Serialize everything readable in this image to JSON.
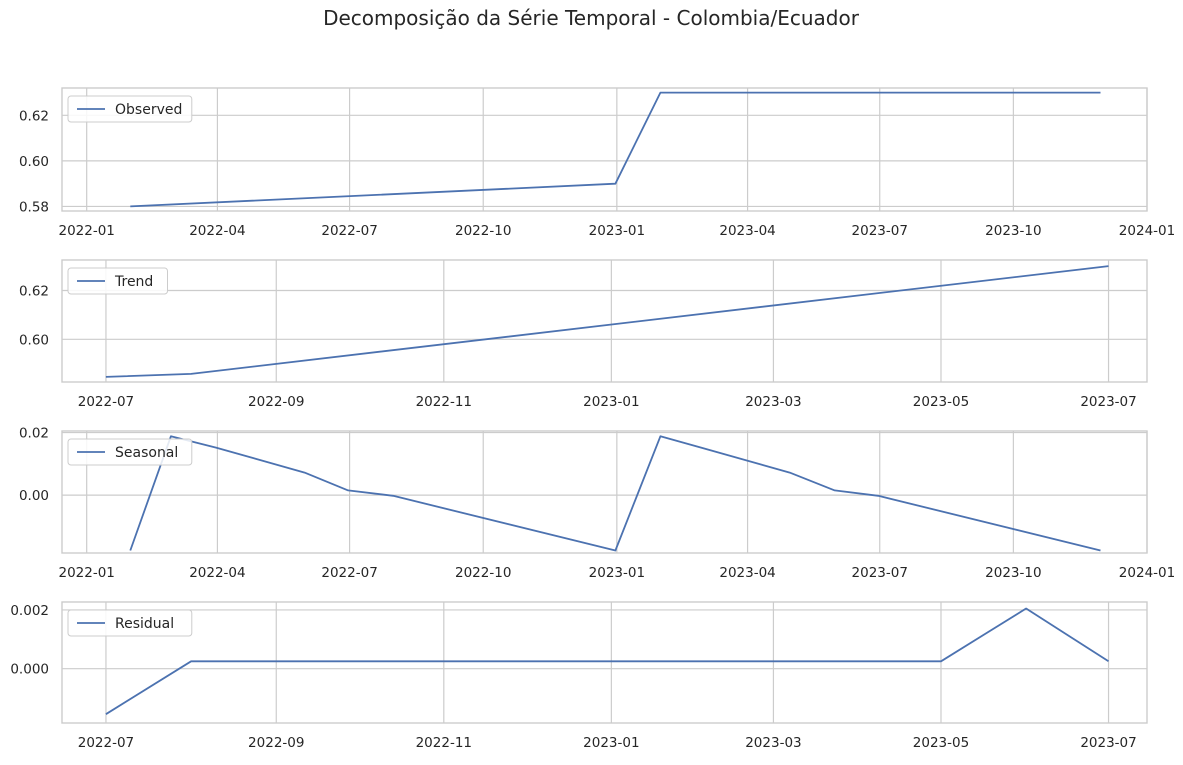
{
  "figure": {
    "title": "Decomposição da Série Temporal - Colombia/Ecuador"
  },
  "colors": {
    "line": "#4c72b0",
    "grid": "#cccccc",
    "spine": "#cccccc",
    "text": "#262626",
    "background": "#ffffff"
  },
  "chart_data": [
    {
      "type": "line",
      "title": "",
      "xlabel": "",
      "ylabel": "",
      "legend": {
        "position": "upper-left",
        "entries": [
          "Observed"
        ]
      },
      "grid": true,
      "xlim": [
        "2021-12-15",
        "2024-01-01"
      ],
      "ylim": [
        0.578,
        0.632
      ],
      "xticks": [
        "2022-01-01",
        "2022-04-01",
        "2022-07-01",
        "2022-10-01",
        "2023-01-01",
        "2023-04-01",
        "2023-07-01",
        "2023-10-01",
        "2024-01-01"
      ],
      "xtick_labels": [
        "2022-01",
        "2022-04",
        "2022-07",
        "2022-10",
        "2023-01",
        "2023-04",
        "2023-07",
        "2023-10",
        "2024-01"
      ],
      "yticks": [
        0.58,
        0.6,
        0.62
      ],
      "ytick_labels": [
        "0.58",
        "0.60",
        "0.62"
      ],
      "series": [
        {
          "name": "Observed",
          "x": [
            "2022-01-31",
            "2022-12-31",
            "2023-01-31",
            "2023-02-28",
            "2023-03-31",
            "2023-04-30",
            "2023-05-31",
            "2023-06-30",
            "2023-07-31",
            "2023-08-31",
            "2023-09-30",
            "2023-10-31",
            "2023-11-30"
          ],
          "y": [
            0.58,
            0.59,
            0.63,
            0.63,
            0.63,
            0.63,
            0.63,
            0.63,
            0.63,
            0.63,
            0.63,
            0.63,
            0.63
          ]
        }
      ]
    },
    {
      "type": "line",
      "title": "",
      "xlabel": "",
      "ylabel": "",
      "legend": {
        "position": "upper-left",
        "entries": [
          "Trend"
        ]
      },
      "grid": true,
      "xlim": [
        "2022-06-15",
        "2023-07-15"
      ],
      "ylim": [
        0.5825,
        0.6325
      ],
      "xticks": [
        "2022-07-01",
        "2022-09-01",
        "2022-11-01",
        "2023-01-01",
        "2023-03-01",
        "2023-05-01",
        "2023-07-01"
      ],
      "xtick_labels": [
        "2022-07",
        "2022-09",
        "2022-11",
        "2023-01",
        "2023-03",
        "2023-05",
        "2023-07"
      ],
      "yticks": [
        0.6,
        0.62
      ],
      "ytick_labels": [
        "0.60",
        "0.62"
      ],
      "series": [
        {
          "name": "Trend",
          "x": [
            "2022-07-01",
            "2022-08-01",
            "2023-07-01"
          ],
          "y": [
            0.5846,
            0.5858,
            0.63
          ]
        }
      ]
    },
    {
      "type": "line",
      "title": "",
      "xlabel": "",
      "ylabel": "",
      "legend": {
        "position": "upper-left",
        "entries": [
          "Seasonal"
        ]
      },
      "grid": true,
      "xlim": [
        "2021-12-15",
        "2024-01-01"
      ],
      "ylim": [
        -0.0185,
        0.0205
      ],
      "xticks": [
        "2022-01-01",
        "2022-04-01",
        "2022-07-01",
        "2022-10-01",
        "2023-01-01",
        "2023-04-01",
        "2023-07-01",
        "2023-10-01",
        "2024-01-01"
      ],
      "xtick_labels": [
        "2022-01",
        "2022-04",
        "2022-07",
        "2022-10",
        "2023-01",
        "2023-04",
        "2023-07",
        "2023-10",
        "2024-01"
      ],
      "yticks": [
        0.0,
        0.02
      ],
      "ytick_labels": [
        "0.00",
        "0.02"
      ],
      "series": [
        {
          "name": "Seasonal",
          "x": [
            "2022-01-31",
            "2022-02-28",
            "2022-03-31",
            "2022-05-31",
            "2022-06-30",
            "2022-07-31",
            "2022-12-31",
            "2023-01-31",
            "2023-02-28",
            "2023-04-30",
            "2023-05-31",
            "2023-06-30",
            "2023-11-30"
          ],
          "y": [
            -0.0177,
            0.0188,
            0.0152,
            0.0072,
            0.0015,
            -0.0002,
            -0.0177,
            0.0188,
            0.0152,
            0.0072,
            0.0015,
            -0.0002,
            -0.0177
          ]
        }
      ]
    },
    {
      "type": "line",
      "title": "",
      "xlabel": "",
      "ylabel": "",
      "legend": {
        "position": "upper-left",
        "entries": [
          "Residual"
        ]
      },
      "grid": true,
      "xlim": [
        "2022-06-15",
        "2023-07-15"
      ],
      "ylim": [
        -0.00185,
        0.00227
      ],
      "xticks": [
        "2022-07-01",
        "2022-09-01",
        "2022-11-01",
        "2023-01-01",
        "2023-03-01",
        "2023-05-01",
        "2023-07-01"
      ],
      "xtick_labels": [
        "2022-07",
        "2022-09",
        "2022-11",
        "2023-01",
        "2023-03",
        "2023-05",
        "2023-07"
      ],
      "yticks": [
        0.0,
        0.002
      ],
      "ytick_labels": [
        "0.000",
        "0.002"
      ],
      "series": [
        {
          "name": "Residual",
          "x": [
            "2022-07-01",
            "2022-08-01",
            "2023-05-01",
            "2023-06-01",
            "2023-07-01"
          ],
          "y": [
            -0.00155,
            0.00025,
            0.00025,
            0.00205,
            0.00025
          ]
        }
      ]
    }
  ]
}
